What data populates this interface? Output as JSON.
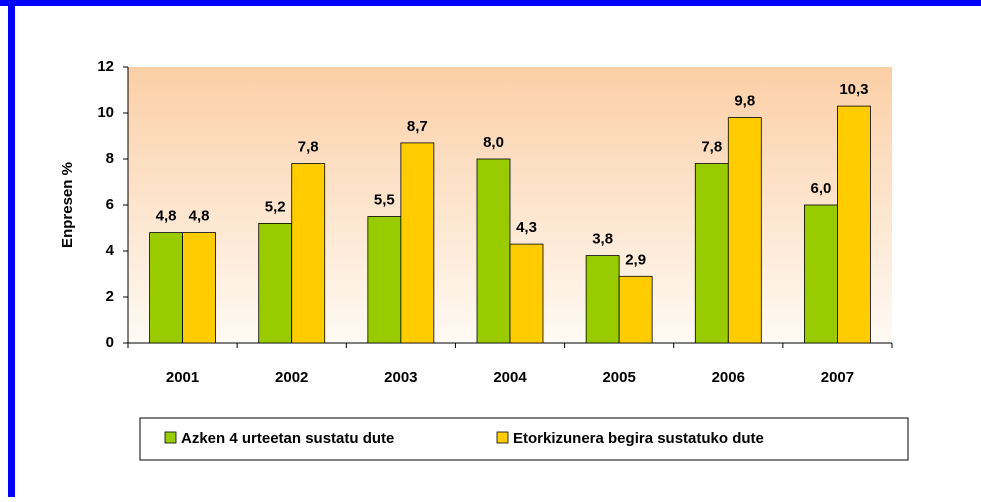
{
  "chart_data": {
    "type": "bar",
    "y_label": "Enpresen %",
    "categories": [
      "2001",
      "2002",
      "2003",
      "2004",
      "2005",
      "2006",
      "2007"
    ],
    "series": [
      {
        "name": "Azken 4 urteetan sustatu dute",
        "color": "#99cc00",
        "values": [
          4.8,
          5.2,
          5.5,
          8.0,
          3.8,
          7.8,
          6.0
        ],
        "value_labels": [
          "4,8",
          "5,2",
          "5,5",
          "8,0",
          "3,8",
          "7,8",
          "6,0"
        ]
      },
      {
        "name": "Etorkizunera begira sustatuko dute",
        "color": "#ffcc00",
        "values": [
          4.8,
          7.8,
          8.7,
          4.3,
          2.9,
          9.8,
          10.3
        ],
        "value_labels": [
          "4,8",
          "7,8",
          "8,7",
          "4,3",
          "2,9",
          "9,8",
          "10,3"
        ]
      }
    ],
    "ylim": [
      0,
      12
    ],
    "yticks": [
      0,
      2,
      4,
      6,
      8,
      10,
      12
    ],
    "legend": "bottom"
  }
}
